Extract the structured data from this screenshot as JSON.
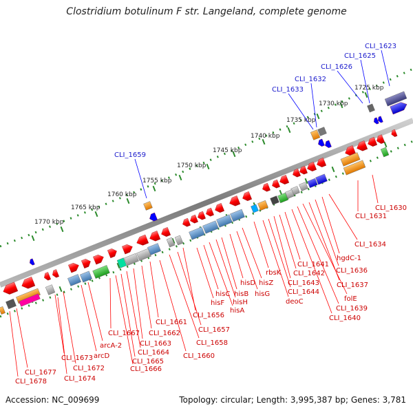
{
  "title": "Clostridium botulinum F str. Langeland, complete genome",
  "footer": {
    "accession": "Accession: NC_009699",
    "topology": "Topology: circular; Length: 3,995,387 bp; Genes: 3,781"
  },
  "ticks": [
    "1725 kbp",
    "1730 kbp",
    "1735 kbp",
    "1740 kbp",
    "1745 kbp",
    "1750 kbp",
    "1755 kbp",
    "1760 kbp",
    "1765 kbp",
    "1770 kbp"
  ],
  "labels_blue": [
    "CLI_1623",
    "CLI_1625",
    "CLI_1626",
    "CLI_1632",
    "CLI_1633",
    "CLI_1659"
  ],
  "labels_red": [
    "CLI_1630",
    "CLI_1631",
    "CLI_1634",
    "hgdC-1",
    "CLI_1636",
    "CLI_1637",
    "folE",
    "CLI_1639",
    "CLI_1640",
    "CLI_1641",
    "CLI_1642",
    "CLI_1643",
    "CLI_1644",
    "deoC",
    "rbsK",
    "hisZ",
    "hisG",
    "hisD",
    "hisB",
    "hisH",
    "hisA",
    "hisC",
    "hisF",
    "CLI_1656",
    "CLI_1657",
    "CLI_1658",
    "CLI_1660",
    "CLI_1661",
    "CLI_1662",
    "CLI_1663",
    "CLI_1664",
    "CLI_1665",
    "CLI_1666",
    "CLI_1667",
    "arcA-2",
    "arcD",
    "CLI_1672",
    "CLI_1673",
    "CLI_1674",
    "CLI_1677",
    "CLI_1678"
  ],
  "colors": {
    "backbone": "#8a8a8a",
    "feature_red": "#ff0000",
    "feature_blue": "#0000ff",
    "label_red": "#cc0000",
    "label_blue": "#1a1acc",
    "tick_green": "#2b8a2b"
  }
}
